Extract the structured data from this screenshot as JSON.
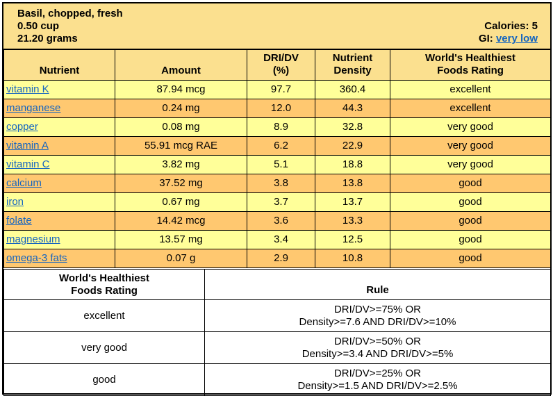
{
  "header": {
    "food": "Basil, chopped, fresh",
    "serving": "0.50 cup",
    "weight": "21.20 grams",
    "calories": "Calories: 5",
    "gi_label": "GI:",
    "gi_value": "very low"
  },
  "nutrient_table": {
    "columns": [
      "Nutrient",
      "Amount",
      "DRI/DV (%)",
      "Nutrient Density",
      "World's Healthiest Foods Rating"
    ],
    "col_dri_line1": "DRI/DV",
    "col_dri_line2": "(%)",
    "col_density_line1": "Nutrient",
    "col_density_line2": "Density",
    "col_rating_line1": "World's Healthiest",
    "col_rating_line2": "Foods Rating",
    "rows": [
      {
        "nutrient": "vitamin K",
        "amount": "87.94 mcg",
        "dri": "97.7",
        "density": "360.4",
        "rating": "excellent"
      },
      {
        "nutrient": "manganese",
        "amount": "0.24 mg",
        "dri": "12.0",
        "density": "44.3",
        "rating": "excellent"
      },
      {
        "nutrient": "copper",
        "amount": "0.08 mg",
        "dri": "8.9",
        "density": "32.8",
        "rating": "very good"
      },
      {
        "nutrient": "vitamin A",
        "amount": "55.91 mcg RAE",
        "dri": "6.2",
        "density": "22.9",
        "rating": "very good"
      },
      {
        "nutrient": "vitamin C",
        "amount": "3.82 mg",
        "dri": "5.1",
        "density": "18.8",
        "rating": "very good"
      },
      {
        "nutrient": "calcium",
        "amount": "37.52 mg",
        "dri": "3.8",
        "density": "13.8",
        "rating": "good"
      },
      {
        "nutrient": "iron",
        "amount": "0.67 mg",
        "dri": "3.7",
        "density": "13.7",
        "rating": "good"
      },
      {
        "nutrient": "folate",
        "amount": "14.42 mcg",
        "dri": "3.6",
        "density": "13.3",
        "rating": "good"
      },
      {
        "nutrient": "magnesium",
        "amount": "13.57 mg",
        "dri": "3.4",
        "density": "12.5",
        "rating": "good"
      },
      {
        "nutrient": "omega-3 fats",
        "amount": "0.07 g",
        "dri": "2.9",
        "density": "10.8",
        "rating": "good"
      }
    ]
  },
  "rule_table": {
    "head_left_line1": "World's Healthiest",
    "head_left_line2": "Foods Rating",
    "head_right": "Rule",
    "rows": [
      {
        "rating": "excellent",
        "rule_line1": "DRI/DV>=75% OR",
        "rule_line2": "Density>=7.6 AND DRI/DV>=10%"
      },
      {
        "rating": "very good",
        "rule_line1": "DRI/DV>=50% OR",
        "rule_line2": "Density>=3.4 AND DRI/DV>=5%"
      },
      {
        "rating": "good",
        "rule_line1": "DRI/DV>=25% OR",
        "rule_line2": "Density>=1.5 AND DRI/DV>=2.5%"
      }
    ]
  },
  "colors": {
    "header_bg": "#fbe08f",
    "row_yellow": "#ffff99",
    "row_orange": "#ffc870",
    "link": "#1565c0"
  }
}
